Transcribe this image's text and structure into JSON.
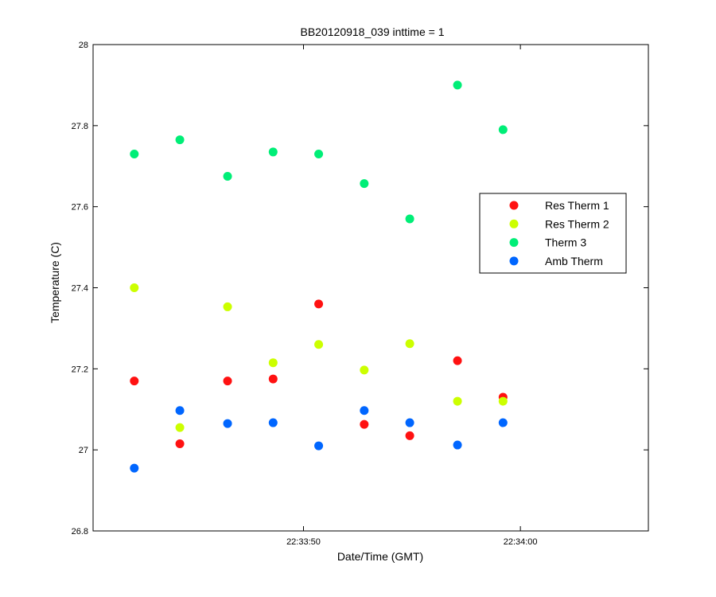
{
  "chart_data": {
    "type": "scatter",
    "title": "BB20120918_039 inttime = 1",
    "xlabel": "Date/Time (GMT)",
    "ylabel": "Temperature (C)",
    "ylim": [
      26.8,
      28
    ],
    "yticks": [
      26.8,
      27,
      27.2,
      27.4,
      27.6,
      27.8,
      28
    ],
    "ytick_labels": [
      "26.8",
      "27",
      "27.2",
      "27.4",
      "27.6",
      "27.8",
      "28"
    ],
    "xlim_seconds_of_day": [
      81220.3,
      81245.9
    ],
    "xticks": [
      {
        "value": 81230,
        "label": "22:33:50"
      },
      {
        "value": 81240,
        "label": "22:34:00"
      }
    ],
    "x": [
      81222.2,
      81224.3,
      81226.5,
      81228.6,
      81230.7,
      81232.8,
      81234.9,
      81237.1,
      81239.2
    ],
    "legend_position": "right",
    "grid": false,
    "series": [
      {
        "name": "Res Therm 1",
        "color": "#ff1111",
        "values": [
          27.17,
          27.015,
          27.17,
          27.175,
          27.36,
          27.063,
          27.035,
          27.22,
          27.13
        ]
      },
      {
        "name": "Res Therm 2",
        "color": "#ccff00",
        "values": [
          27.4,
          27.055,
          27.353,
          27.215,
          27.26,
          27.197,
          27.262,
          27.12,
          27.12
        ]
      },
      {
        "name": "Therm 3",
        "color": "#00ee77",
        "values": [
          27.73,
          27.765,
          27.675,
          27.735,
          27.73,
          27.657,
          27.57,
          27.9,
          27.79
        ]
      },
      {
        "name": "Amb Therm",
        "color": "#0066ff",
        "values": [
          26.955,
          27.097,
          27.065,
          27.067,
          27.01,
          27.097,
          27.067,
          27.012,
          27.067
        ]
      }
    ]
  }
}
